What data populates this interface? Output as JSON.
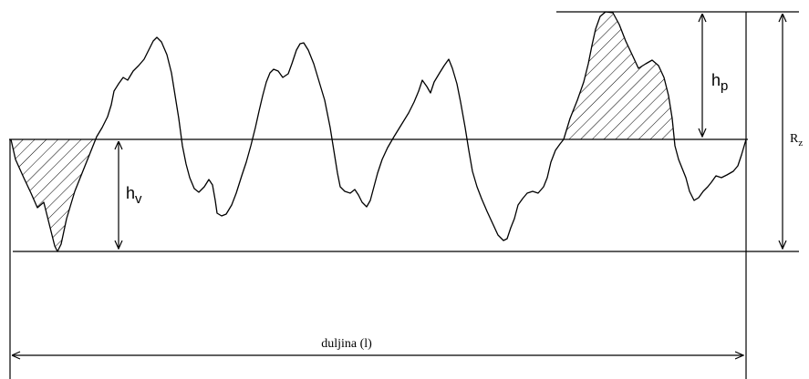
{
  "diagram": {
    "labels": {
      "peak_height": "h",
      "peak_height_sub": "p",
      "valley_depth": "h",
      "valley_depth_sub": "v",
      "total_height": "R",
      "total_height_sub": "z",
      "length": "duljina (l)"
    },
    "colors": {
      "stroke": "#000000",
      "background": "#ffffff",
      "hatch": "#000000"
    }
  }
}
